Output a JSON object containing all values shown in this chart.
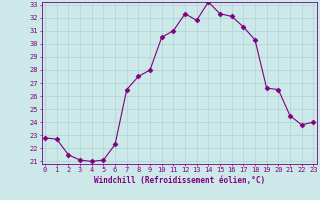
{
  "x": [
    0,
    1,
    2,
    3,
    4,
    5,
    6,
    7,
    8,
    9,
    10,
    11,
    12,
    13,
    14,
    15,
    16,
    17,
    18,
    19,
    20,
    21,
    22,
    23
  ],
  "y": [
    22.8,
    22.7,
    21.5,
    21.1,
    21.0,
    21.1,
    22.3,
    26.5,
    27.5,
    28.0,
    30.5,
    31.0,
    32.3,
    31.8,
    33.2,
    32.3,
    32.1,
    31.3,
    30.3,
    26.6,
    26.5,
    24.5,
    23.8,
    24.0
  ],
  "line_color": "#800080",
  "marker": "D",
  "marker_size": 2.5,
  "bg_color": "#cce8e8",
  "grid_color": "#aad4d4",
  "xlabel": "Windchill (Refroidissement éolien,°C)",
  "ylim_min": 21,
  "ylim_max": 33,
  "xlim_min": 0,
  "xlim_max": 23,
  "yticks": [
    21,
    22,
    23,
    24,
    25,
    26,
    27,
    28,
    29,
    30,
    31,
    32,
    33
  ],
  "xticks": [
    0,
    1,
    2,
    3,
    4,
    5,
    6,
    7,
    8,
    9,
    10,
    11,
    12,
    13,
    14,
    15,
    16,
    17,
    18,
    19,
    20,
    21,
    22,
    23
  ],
  "tick_color": "#800080",
  "label_color": "#800080",
  "font_size_axis": 5.5,
  "font_size_tick": 5.0,
  "linewidth": 0.8
}
